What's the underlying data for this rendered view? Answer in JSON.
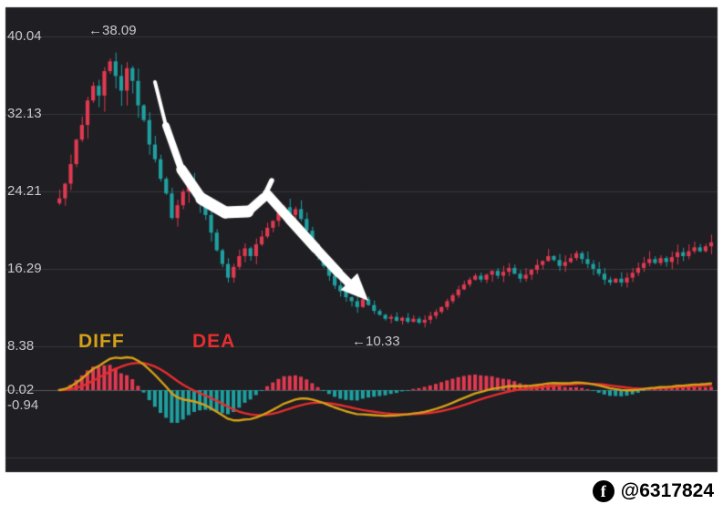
{
  "colors": {
    "background": "#1e1e23",
    "up": "#e03a50",
    "down": "#1fa0a0",
    "diff_line": "#d6a018",
    "dea_line": "#e62e2e",
    "grid": "#36363b",
    "zero_line": "#55555b",
    "arrow": "#ffffff",
    "axis_text": "#c9c9cb",
    "watermark_text": "#000000"
  },
  "watermark": {
    "handle": "@6317824",
    "icon": "facebook-icon",
    "icon_glyph": "f"
  },
  "chart_data": [
    {
      "type": "candlestick",
      "title": "",
      "xlabel": "",
      "ylabel": "",
      "ylim": [
        7.0,
        41.0
      ],
      "grid": true,
      "y_ticks": [
        40.04,
        32.13,
        24.21,
        16.29,
        8.38
      ],
      "annotations": [
        {
          "text": "←38.09",
          "price": 38.09
        },
        {
          "text": "←10.33",
          "price": 10.33
        }
      ],
      "closes": [
        23.5,
        25.0,
        27.0,
        29.5,
        31.0,
        33.5,
        35.0,
        34.0,
        36.5,
        37.5,
        36.0,
        34.5,
        36.8,
        35.5,
        33.0,
        31.5,
        29.0,
        27.5,
        25.5,
        24.0,
        21.5,
        22.8,
        24.2,
        25.0,
        24.3,
        23.0,
        21.8,
        20.0,
        18.2,
        16.8,
        15.4,
        16.5,
        17.6,
        18.4,
        17.6,
        18.8,
        19.6,
        20.5,
        21.2,
        22.0,
        22.6,
        21.8,
        22.4,
        21.4,
        20.2,
        18.8,
        17.6,
        16.6,
        15.6,
        14.6,
        14.0,
        13.4,
        13.0,
        12.4,
        13.2,
        12.6,
        12.0,
        11.6,
        11.2,
        11.4,
        11.0,
        11.3,
        10.9,
        11.2,
        10.8,
        11.1,
        11.5,
        11.9,
        12.4,
        13.0,
        13.6,
        14.2,
        14.7,
        15.2,
        15.6,
        15.2,
        15.7,
        16.1,
        15.6,
        16.0,
        16.4,
        15.8,
        15.3,
        15.7,
        16.2,
        16.7,
        17.1,
        17.6,
        17.2,
        16.6,
        17.0,
        17.4,
        17.9,
        17.3,
        16.8,
        16.3,
        15.8,
        15.2,
        14.9,
        15.3,
        14.9,
        15.4,
        15.9,
        16.4,
        16.9,
        17.3,
        16.9,
        17.4,
        17.0,
        17.5,
        18.0,
        17.6,
        18.1,
        18.5,
        18.1,
        18.6,
        19.0
      ]
    },
    {
      "type": "macd",
      "params": {
        "fast": 12,
        "slow": 26,
        "signal": 9
      },
      "histogram_rule": "2*(DIFF-DEA)",
      "y_ticks": [
        0.02,
        -0.94
      ],
      "series": [
        {
          "name": "DIFF",
          "color_key": "diff_line"
        },
        {
          "name": "DEA",
          "color_key": "dea_line"
        }
      ]
    }
  ]
}
